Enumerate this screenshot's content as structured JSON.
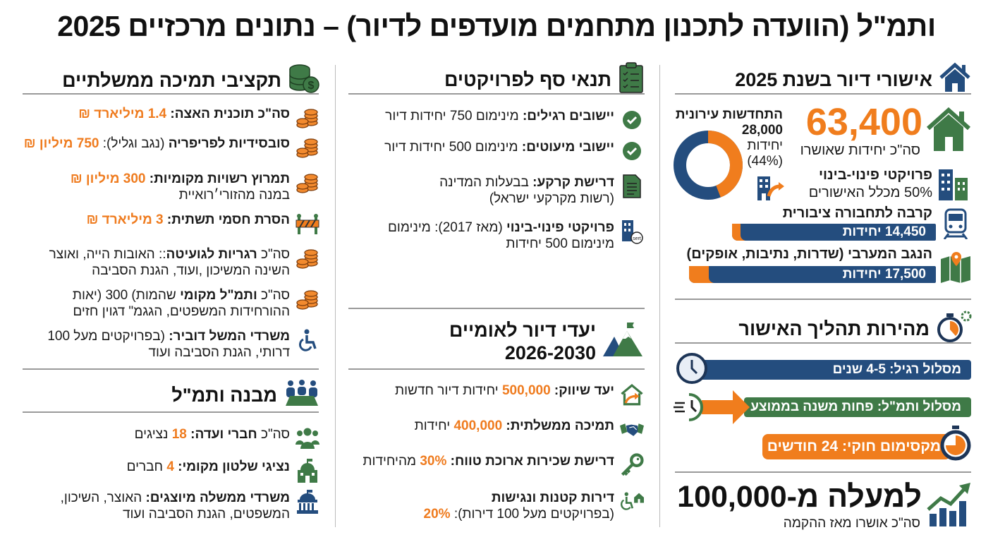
{
  "title": "ותמ\"ל (הוועדה לתכנון מתחמים מועדפים לדיור) – נתונים מרכזיים 2025",
  "colors": {
    "blue": "#244d7e",
    "green": "#3f7a47",
    "orange": "#f07d1d"
  },
  "left": {
    "heading": "תקציבי תמיכה ממשלתיים",
    "heading_icon": "money-stack-icon",
    "items": [
      {
        "icon": "coins-icon",
        "lines": [
          [
            {
              "t": "סה\"כ תוכנית האצה: ",
              "s": "b"
            },
            {
              "t": "1.4 מיליארד ₪",
              "s": "o"
            }
          ]
        ]
      },
      {
        "icon": "coins-icon",
        "lines": [
          [
            {
              "t": "סובסידיות לפריפריה",
              "s": "b"
            },
            {
              "t": " (נגב וגליל): ",
              "s": "n"
            },
            {
              "t": "750 מיליון ₪",
              "s": "o"
            }
          ]
        ]
      },
      {
        "icon": "coins-icon",
        "lines": [
          [
            {
              "t": "תמרוץ רשויות מקומיות: ",
              "s": "b"
            },
            {
              "t": "300 מיליון ₪",
              "s": "o"
            }
          ],
          [
            {
              "t": "במנה מהזורי׳רואיית",
              "s": "n"
            }
          ]
        ]
      },
      {
        "icon": "roadblock-icon",
        "lines": [
          [
            {
              "t": "הסרת חסמי תשתית: ",
              "s": "b"
            },
            {
              "t": "3 מיליארד ₪",
              "s": "o"
            }
          ]
        ]
      },
      {
        "icon": "coins-icon",
        "lines": [
          [
            {
              "t": "סה\"כ ",
              "s": "n"
            },
            {
              "t": "רגריות לגועיטה",
              "s": "b"
            },
            {
              "t": ":: האובות הייה, ואוצר",
              "s": "n"
            }
          ],
          [
            {
              "t": "השינה המשיכון ,ועוד, הגנת הסביבה",
              "s": "n"
            }
          ]
        ]
      },
      {
        "icon": "coins-icon",
        "lines": [
          [
            {
              "t": "סה\"כ ",
              "s": "n"
            },
            {
              "t": "ותמ\"ל מקומי",
              "s": "b"
            },
            {
              "t": " שהמות) 300 (יאות",
              "s": "n"
            }
          ],
          [
            {
              "t": "ההורחידות המשפטים, הגגמ\" דגוין חזים",
              "s": "n"
            }
          ]
        ]
      },
      {
        "icon": "wheelchair-icon",
        "lines": [
          [
            {
              "t": "משרדי המשל דוביר:",
              "s": "b"
            },
            {
              "t": " (בפרויקטים מעל 100",
              "s": "n"
            }
          ],
          [
            {
              "t": "דרותי, הגנת הסביבה ועוד",
              "s": "n"
            }
          ]
        ]
      }
    ]
  },
  "structure": {
    "heading": "מבנה ותמ\"ל",
    "heading_icon": "meeting-table-icon",
    "items": [
      {
        "icon": "people-icon",
        "lines": [
          [
            {
              "t": "סה\"כ ",
              "s": "n"
            },
            {
              "t": "חברי ועדה: ",
              "s": "b"
            },
            {
              "t": "18",
              "s": "o"
            },
            {
              "t": " נציגים",
              "s": "n"
            }
          ]
        ]
      },
      {
        "icon": "town-hall-icon",
        "lines": [
          [
            {
              "t": "נציגי שלטון מקומי: ",
              "s": "b"
            },
            {
              "t": "4",
              "s": "o"
            },
            {
              "t": " חברים",
              "s": "n"
            }
          ]
        ]
      },
      {
        "icon": "government-building-icon",
        "lines": [
          [
            {
              "t": "משרדי ממשלה מיוצגים:",
              "s": "b"
            },
            {
              "t": " האוצר, השיכון,",
              "s": "n"
            }
          ],
          [
            {
              "t": "המשפטים, הגנת הסביבה ועוד",
              "s": "n"
            }
          ]
        ]
      }
    ]
  },
  "threshold": {
    "heading": "תנאי סף לפרויקטים",
    "heading_icon": "clipboard-checklist-icon",
    "items": [
      {
        "icon": "check-circle-icon",
        "lines": [
          [
            {
              "t": "יישובים רגילים:",
              "s": "b"
            },
            {
              "t": " מינימום 750 יחידות דיור",
              "s": "n"
            }
          ]
        ]
      },
      {
        "icon": "check-circle-icon",
        "lines": [
          [
            {
              "t": "יישובי מיעוטים:",
              "s": "b"
            },
            {
              "t": " מינימום 500 יחידות דיור",
              "s": "n"
            }
          ]
        ]
      },
      {
        "icon": "document-icon",
        "lines": [
          [
            {
              "t": "דרישת קרקע:",
              "s": "b"
            },
            {
              "t": " בבעלות המדינה",
              "s": "n"
            }
          ],
          [
            {
              "t": "(רשות מקרקעי ישראל)",
              "s": "n"
            }
          ]
        ]
      },
      {
        "icon": "building-renewal-icon",
        "lines": [
          [
            {
              "t": "פרויקטי פינוי-בינוי",
              "s": "b"
            },
            {
              "t": " (מאז 2017): מינימום",
              "s": "n"
            }
          ],
          [
            {
              "t": "מינימום 500 יחידות",
              "s": "n"
            }
          ]
        ]
      }
    ]
  },
  "goals": {
    "heading_line1": "יעדי דיור לאומיים",
    "heading_line2": "2026-2030",
    "heading_icon": "mountain-flag-icon",
    "items": [
      {
        "icon": "house-arrow-icon",
        "lines": [
          [
            {
              "t": "יעד שיווק: ",
              "s": "b"
            },
            {
              "t": "500,000",
              "s": "o"
            },
            {
              "t": " יחידות דיור חדשות",
              "s": "n"
            }
          ]
        ]
      },
      {
        "icon": "handshake-icon",
        "lines": [
          [
            {
              "t": "תמיכה ממשלתית: ",
              "s": "b"
            },
            {
              "t": "400,000",
              "s": "o"
            },
            {
              "t": " יחידות",
              "s": "n"
            }
          ]
        ]
      },
      {
        "icon": "key-icon",
        "lines": [
          [
            {
              "t": "דרישת שכירות ארוכת טווח: ",
              "s": "b"
            },
            {
              "t": "30%",
              "s": "o"
            },
            {
              "t": " מהיחידות",
              "s": "n"
            }
          ]
        ]
      },
      {
        "icon": "accessible-home-icon",
        "lines": [
          [
            {
              "t": "דירות קטנות ונגישות",
              "s": "b"
            }
          ],
          [
            {
              "t": "(בפרויקטים מעל 100 דירות): ",
              "s": "n"
            },
            {
              "t": "20%",
              "s": "o"
            }
          ]
        ]
      }
    ]
  },
  "approvals": {
    "heading": "אישורי דיור בשנת 2025",
    "heading_icon": "house-icon",
    "total_value": "63,400",
    "total_label": "סה\"כ יחידות שאושרו",
    "urban_renewal": {
      "title": "התחדשות עירונית",
      "value": "28,000",
      "unit": "יחידות",
      "percent_label": "(44%)",
      "percent": 44
    },
    "evacuation": {
      "title": "פרויקטי פינוי-בינוי",
      "value_text": "50% מכלל האישורים"
    },
    "transit": {
      "title": "קרבה לתחבורה ציבורית",
      "bar_label": "14,450 יחידות",
      "value": 14450
    },
    "negev": {
      "title": "הנגב המערבי (שדרות, נתיבות, אופקים)",
      "bar_label": "17,500 יחידות",
      "value": 17500
    }
  },
  "speed": {
    "heading": "מהירות תהליך האישור",
    "heading_icon": "stopwatch-gear-icon",
    "regular": "מסלול רגיל: 4-5 שנים",
    "vatmal": "מסלול ותמ\"ל: פחות משנה בממוצע",
    "maximum": "מקסימום חוקי: 24 חודשים"
  },
  "total": {
    "value": "למעלה מ-100,000",
    "label": "סה\"כ אושרו מאז ההקמה",
    "icon": "growth-chart-icon"
  }
}
